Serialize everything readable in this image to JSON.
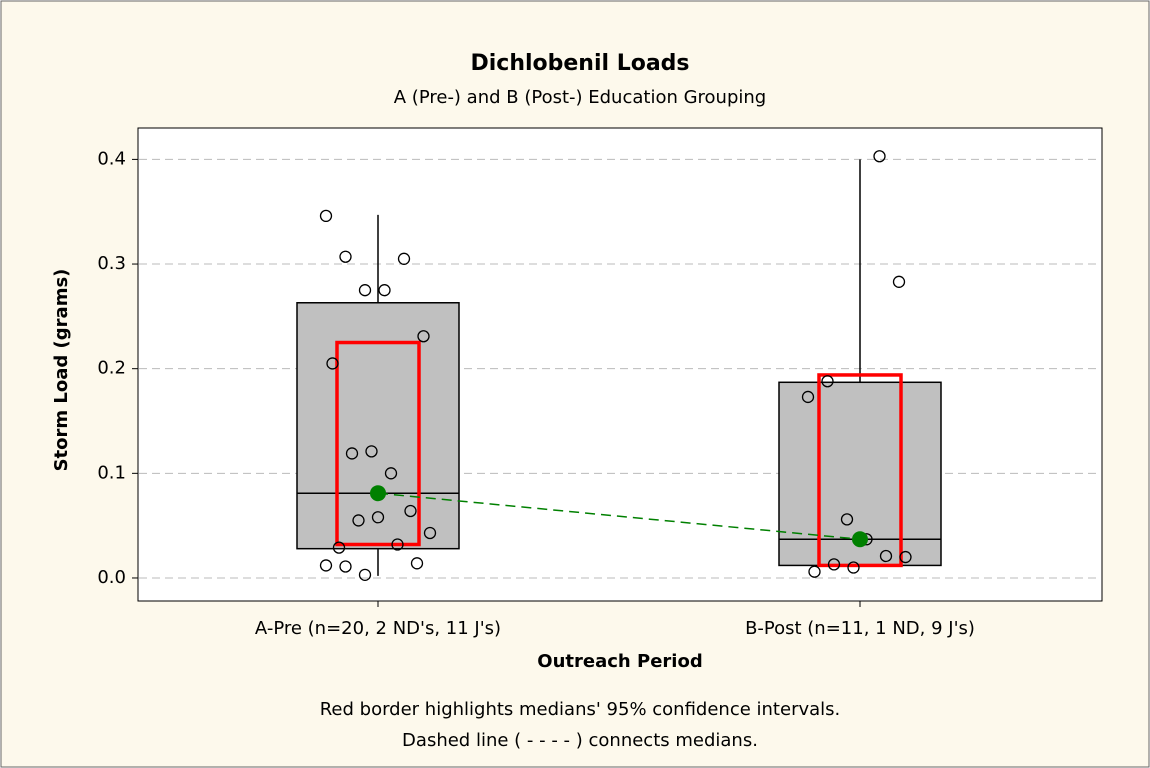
{
  "chart_data": {
    "type": "box",
    "title": "Dichlobenil Loads",
    "subtitle": "A (Pre-) and B (Post-) Education Grouping",
    "y_label": "Storm Load (grams)",
    "x_label": "Outreach Period",
    "notes": [
      "Red border highlights medians' 95% confidence intervals.",
      "Dashed line ( - - - - ) connects medians."
    ],
    "note_colors": [
      "#ff0000",
      "#008000"
    ],
    "categories": [
      "A-Pre (n=20, 2 ND's, 11 J's)",
      "B-Post (n=11, 1 ND, 9 J's)"
    ],
    "box_color": "#c0c0c0",
    "ci_color": "#ff0000",
    "median_color": "#008000",
    "boxes": [
      {
        "whislo": 0.002,
        "q1": 0.028,
        "median": 0.081,
        "q3": 0.263,
        "whishi": 0.347,
        "ci_low": 0.032,
        "ci_high": 0.225,
        "points": [
          0.346,
          0.307,
          0.275,
          0.275,
          0.305,
          0.231,
          0.205,
          0.119,
          0.121,
          0.1,
          0.064,
          0.043,
          0.029,
          0.055,
          0.058,
          0.032,
          0.014,
          0.012,
          0.011,
          0.003
        ]
      },
      {
        "whislo": 0.012,
        "q1": 0.012,
        "median": 0.037,
        "q3": 0.187,
        "whishi": 0.4,
        "ci_low": 0.012,
        "ci_high": 0.194,
        "points": [
          0.403,
          0.283,
          0.173,
          0.188,
          0.056,
          0.037,
          0.021,
          0.02,
          0.006,
          0.013,
          0.01
        ]
      }
    ],
    "ylim": [
      -0.022,
      0.43
    ],
    "yticks": [
      {
        "value": 0,
        "label": "0.0"
      },
      0.1,
      0.2,
      0.3,
      0.4
    ],
    "grid": true
  }
}
